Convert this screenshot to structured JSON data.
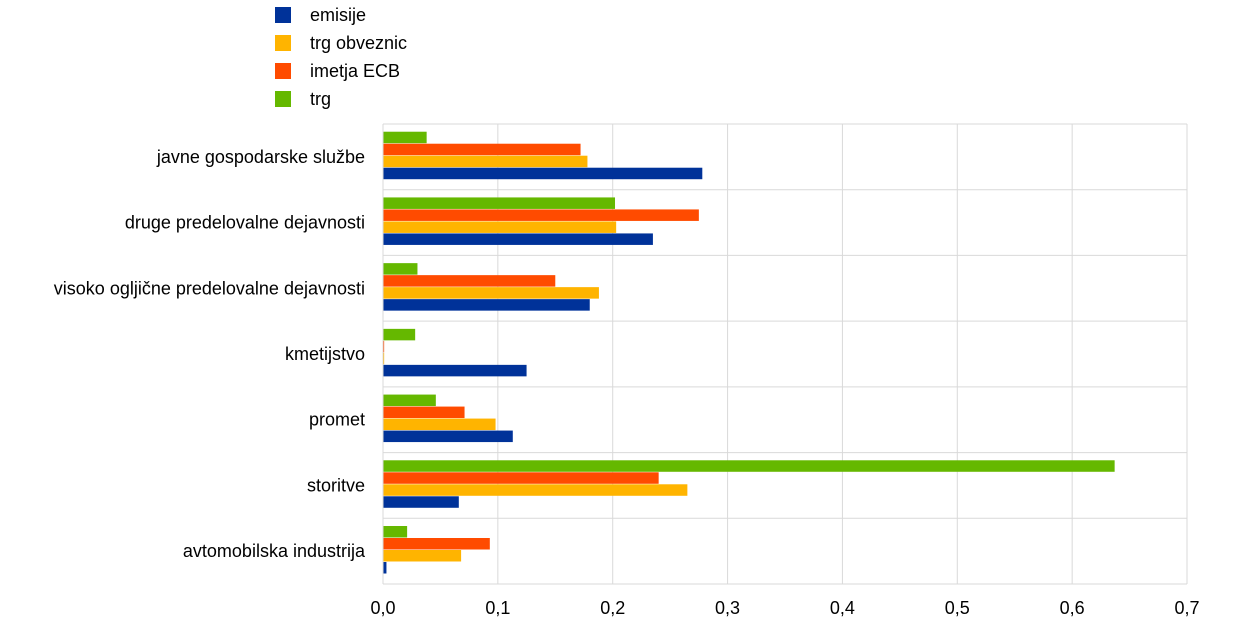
{
  "chart_data": {
    "type": "bar",
    "orientation": "horizontal",
    "title": "",
    "xlabel": "",
    "ylabel": "",
    "categories": [
      "javne gospodarske službe",
      "druge predelovalne dejavnosti",
      "visoko ogljične predelovalne dejavnosti",
      "kmetijstvo",
      "promet",
      "storitve",
      "avtomobilska industrija"
    ],
    "series": [
      {
        "name": "emisije",
        "color": "#003299",
        "values": [
          0.278,
          0.235,
          0.18,
          0.125,
          0.113,
          0.066,
          0.003
        ]
      },
      {
        "name": "trg obveznic",
        "color": "#ffb400",
        "values": [
          0.178,
          0.203,
          0.188,
          0.001,
          0.098,
          0.265,
          0.068
        ]
      },
      {
        "name": "imetja ECB",
        "color": "#ff4b00",
        "values": [
          0.172,
          0.275,
          0.15,
          0.001,
          0.071,
          0.24,
          0.093
        ]
      },
      {
        "name": "trg",
        "color": "#65b800",
        "values": [
          0.038,
          0.202,
          0.03,
          0.028,
          0.046,
          0.637,
          0.021
        ]
      }
    ],
    "xlim": [
      0,
      0.7
    ],
    "xticks": [
      "0,0",
      "0,1",
      "0,2",
      "0,3",
      "0,4",
      "0,5",
      "0,6",
      "0,7"
    ],
    "grid": true,
    "legend_position": "top-left"
  }
}
